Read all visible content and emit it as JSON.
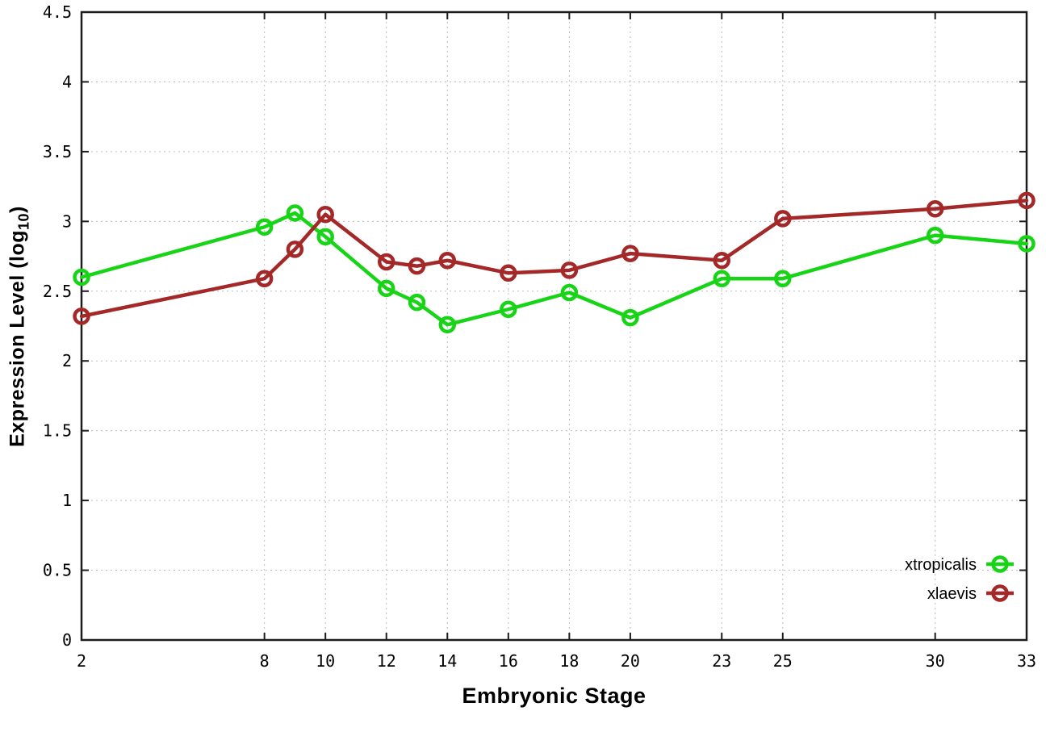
{
  "chart_data": {
    "type": "line",
    "title": "",
    "xlabel": "Embryonic Stage",
    "ylabel": "Expression Level (log10)",
    "ylabel_parts": {
      "prefix": "Expression Level (log",
      "sub": "10",
      "suffix": ")"
    },
    "x": [
      2,
      8,
      9,
      10,
      12,
      13,
      14,
      16,
      18,
      20,
      23,
      25,
      30,
      33
    ],
    "series": [
      {
        "name": "xtropicalis",
        "color": "#17d417",
        "values": [
          2.6,
          2.96,
          3.06,
          2.89,
          2.52,
          2.42,
          2.26,
          2.37,
          2.49,
          2.31,
          2.59,
          2.59,
          2.9,
          2.84
        ]
      },
      {
        "name": "xlaevis",
        "color": "#a42828",
        "values": [
          2.32,
          2.59,
          2.8,
          3.05,
          2.71,
          2.68,
          2.72,
          2.63,
          2.65,
          2.77,
          2.72,
          3.02,
          3.09,
          3.15
        ]
      }
    ],
    "xlim": [
      2,
      33
    ],
    "ylim": [
      0,
      4.5
    ],
    "x_ticks": [
      2,
      8,
      10,
      12,
      14,
      16,
      18,
      20,
      23,
      25,
      30,
      33
    ],
    "x_tick_labels": [
      "2",
      "8",
      "10",
      "12",
      "14",
      "16",
      "18",
      "20",
      "23",
      "25",
      "30",
      "33"
    ],
    "y_ticks": [
      0,
      0.5,
      1,
      1.5,
      2,
      2.5,
      3,
      3.5,
      4,
      4.5
    ],
    "y_tick_labels": [
      "0",
      "0.5",
      "1",
      "1.5",
      "2",
      "2.5",
      "3",
      "3.5",
      "4",
      "4.5"
    ],
    "grid": true,
    "legend_position": "bottom-right",
    "colors": {
      "border": "#1c1c1c",
      "gridline": "#bdbdbd",
      "background": "#ffffff",
      "text": "#000000"
    }
  }
}
